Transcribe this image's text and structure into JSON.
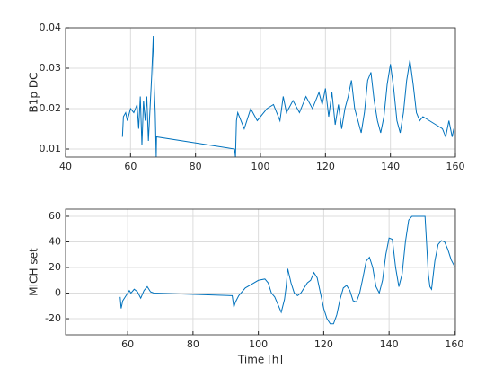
{
  "chart_data": [
    {
      "type": "line",
      "ylabel": "B1p DC",
      "xlim": [
        40,
        160
      ],
      "xticks": [
        40,
        60,
        80,
        100,
        120,
        140,
        160
      ],
      "ylim": [
        0.008,
        0.04
      ],
      "yticks": [
        0.01,
        0.02,
        0.03,
        0.04
      ],
      "grid": true,
      "series": [
        {
          "color": "#0072bd",
          "x": [
            57.5,
            57.8,
            58.5,
            59,
            60,
            61,
            62,
            62.5,
            63,
            63.5,
            64,
            64.5,
            65,
            65.5,
            66,
            66.5,
            67,
            67.3,
            67.6,
            67.9,
            68,
            92,
            92.3,
            92.6,
            93,
            95,
            97,
            99,
            100,
            102,
            104,
            106,
            107,
            108,
            110,
            112,
            114,
            116,
            118,
            119,
            120,
            121,
            122,
            123,
            124,
            125,
            126,
            127,
            128,
            129,
            130,
            131,
            132,
            133,
            134,
            135,
            136,
            137,
            138,
            139,
            140,
            141,
            142,
            143,
            144,
            145,
            146,
            147,
            148,
            149,
            150,
            152,
            154,
            156,
            157,
            158,
            159,
            159.5
          ],
          "values": [
            0.013,
            0.018,
            0.019,
            0.017,
            0.02,
            0.019,
            0.021,
            0.015,
            0.023,
            0.011,
            0.022,
            0.017,
            0.023,
            0.012,
            0.02,
            0.028,
            0.038,
            0.025,
            0.019,
            0.008,
            0.013,
            0.01,
            0.008,
            0.017,
            0.019,
            0.015,
            0.02,
            0.017,
            0.018,
            0.02,
            0.021,
            0.017,
            0.023,
            0.019,
            0.022,
            0.019,
            0.023,
            0.02,
            0.024,
            0.021,
            0.025,
            0.018,
            0.024,
            0.016,
            0.021,
            0.015,
            0.02,
            0.023,
            0.027,
            0.02,
            0.017,
            0.014,
            0.019,
            0.027,
            0.029,
            0.022,
            0.017,
            0.014,
            0.018,
            0.026,
            0.031,
            0.025,
            0.017,
            0.014,
            0.019,
            0.027,
            0.032,
            0.026,
            0.019,
            0.017,
            0.018,
            0.017,
            0.016,
            0.015,
            0.013,
            0.017,
            0.013,
            0.015
          ]
        }
      ]
    },
    {
      "type": "line",
      "xlabel": "Time [h]",
      "ylabel": "MICH set",
      "xlim": [
        41,
        160.3
      ],
      "xticks": [
        60,
        80,
        100,
        120,
        140,
        160
      ],
      "ylim": [
        -32.6,
        65.6
      ],
      "yticks": [
        -20,
        0,
        20,
        40,
        60
      ],
      "grid": true,
      "series": [
        {
          "color": "#0072bd",
          "x": [
            57.7,
            58,
            58.5,
            59.5,
            60.5,
            61,
            62,
            63,
            64,
            65,
            66,
            66.5,
            67,
            68,
            92,
            92.5,
            93,
            94,
            96,
            98,
            100,
            102,
            103,
            104,
            105,
            106,
            107,
            108,
            108.5,
            109,
            110,
            111,
            112,
            113,
            114,
            115,
            116,
            117,
            118,
            119,
            120,
            121,
            122,
            123,
            124,
            125,
            126,
            127,
            128,
            129,
            130,
            131,
            132,
            133,
            134,
            135,
            136,
            137,
            138,
            139,
            140,
            141,
            142,
            143,
            144,
            145,
            146,
            147,
            151,
            151.5,
            152,
            152.5,
            153,
            154,
            155,
            156,
            157,
            158,
            159,
            160
          ],
          "values": [
            -3,
            -12,
            -6,
            -2,
            2,
            0,
            3,
            1,
            -4,
            2,
            5,
            3,
            1,
            0,
            -2,
            -11,
            -7,
            -2,
            4,
            7,
            10,
            11,
            8,
            0,
            -3,
            -9,
            -15,
            -5,
            5,
            19,
            8,
            0,
            -2,
            0,
            4,
            8,
            10,
            16,
            12,
            0,
            -12,
            -20,
            -24,
            -24,
            -17,
            -5,
            4,
            6,
            2,
            -6,
            -7,
            0,
            12,
            25,
            28,
            20,
            5,
            0,
            10,
            30,
            43,
            42,
            20,
            5,
            15,
            40,
            57,
            60,
            60,
            38,
            15,
            5,
            3,
            25,
            38,
            41,
            40,
            34,
            26,
            21
          ]
        }
      ]
    }
  ]
}
